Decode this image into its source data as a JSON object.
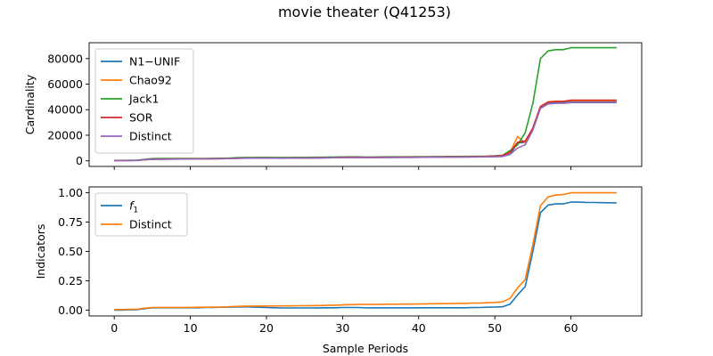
{
  "suptitle": "movie theater (Q41253)",
  "chart_data": [
    {
      "type": "line",
      "ylabel": "Cardinality",
      "xlabel": "",
      "xlim": [
        -3.3,
        69.3
      ],
      "ylim": [
        -4400,
        92400
      ],
      "xticks": [
        0,
        10,
        20,
        30,
        40,
        50,
        60
      ],
      "yticks": [
        0,
        20000,
        40000,
        60000,
        80000
      ],
      "show_xtick_labels": false,
      "legend": "upper-left",
      "x": [
        0,
        1,
        2,
        3,
        4,
        5,
        6,
        7,
        8,
        9,
        10,
        11,
        12,
        13,
        14,
        15,
        16,
        17,
        18,
        19,
        20,
        21,
        22,
        23,
        24,
        25,
        26,
        27,
        28,
        29,
        30,
        31,
        32,
        33,
        34,
        35,
        36,
        37,
        38,
        39,
        40,
        41,
        42,
        43,
        44,
        45,
        46,
        47,
        48,
        49,
        50,
        51,
        52,
        53,
        54,
        55,
        56,
        57,
        58,
        59,
        60,
        61,
        62,
        63,
        64,
        65,
        66
      ],
      "series": [
        {
          "name": "N1−UNIF",
          "color": "#1f77b4",
          "values": [
            200,
            250,
            300,
            350,
            900,
            1200,
            1300,
            1350,
            1400,
            1450,
            1500,
            1550,
            1600,
            1650,
            1700,
            1800,
            2000,
            2100,
            2150,
            2200,
            2200,
            2150,
            2100,
            2150,
            2200,
            2250,
            2300,
            2350,
            2400,
            2500,
            2600,
            2650,
            2700,
            2600,
            2600,
            2650,
            2700,
            2700,
            2750,
            2750,
            2800,
            2850,
            2900,
            2950,
            3000,
            3000,
            3050,
            3100,
            3150,
            3200,
            3300,
            3500,
            5000,
            14000,
            14500,
            25000,
            42000,
            45000,
            45500,
            45500,
            46000,
            46000,
            46000,
            46000,
            46000,
            46000,
            46000
          ]
        },
        {
          "name": "Chao92",
          "color": "#ff7f0e",
          "values": [
            200,
            250,
            300,
            350,
            900,
            1200,
            1300,
            1350,
            1400,
            1450,
            1500,
            1550,
            1600,
            1650,
            1700,
            1800,
            2000,
            2100,
            2150,
            2200,
            2200,
            2150,
            2100,
            2150,
            2200,
            2250,
            2300,
            2350,
            2400,
            2500,
            2600,
            2650,
            2700,
            2600,
            2600,
            2650,
            2700,
            2700,
            2750,
            2750,
            2800,
            2850,
            2900,
            2950,
            3000,
            3000,
            3050,
            3100,
            3200,
            3300,
            3500,
            3800,
            6500,
            19000,
            14000,
            26000,
            42500,
            46000,
            46500,
            46500,
            47000,
            47000,
            47000,
            47000,
            47000,
            47000,
            47000
          ]
        },
        {
          "name": "Jack1",
          "color": "#2ca02c",
          "values": [
            300,
            350,
            400,
            450,
            1200,
            1700,
            1800,
            1800,
            1850,
            1850,
            1850,
            1900,
            1900,
            1950,
            2000,
            2100,
            2400,
            2600,
            2650,
            2700,
            2700,
            2650,
            2600,
            2650,
            2700,
            2700,
            2750,
            2800,
            2850,
            2950,
            3050,
            3100,
            3100,
            3000,
            3000,
            3050,
            3100,
            3100,
            3150,
            3150,
            3200,
            3250,
            3300,
            3350,
            3400,
            3400,
            3450,
            3500,
            3600,
            3700,
            3900,
            4300,
            8000,
            12500,
            22000,
            45000,
            80000,
            86000,
            87000,
            87000,
            88500,
            88500,
            88500,
            88500,
            88500,
            88500,
            88500
          ]
        },
        {
          "name": "SOR",
          "color": "#d62728",
          "values": [
            200,
            250,
            300,
            350,
            900,
            1200,
            1300,
            1350,
            1400,
            1450,
            1500,
            1550,
            1600,
            1650,
            1700,
            1800,
            2000,
            2100,
            2150,
            2200,
            2200,
            2150,
            2100,
            2150,
            2200,
            2250,
            2300,
            2350,
            2400,
            2500,
            2700,
            2750,
            2800,
            2700,
            2700,
            2750,
            2800,
            2800,
            2850,
            2850,
            2900,
            2950,
            3000,
            3050,
            3100,
            3100,
            3150,
            3200,
            3300,
            3500,
            3700,
            4200,
            6500,
            14500,
            15500,
            25500,
            42500,
            46000,
            46500,
            46500,
            47500,
            47500,
            47500,
            47500,
            47500,
            47500,
            47500
          ]
        },
        {
          "name": "Distinct",
          "color": "#9467bd",
          "values": [
            150,
            200,
            250,
            300,
            800,
            1100,
            1200,
            1250,
            1300,
            1350,
            1400,
            1450,
            1500,
            1550,
            1600,
            1700,
            1900,
            2000,
            2050,
            2100,
            2100,
            2050,
            2000,
            2050,
            2100,
            2150,
            2200,
            2250,
            2300,
            2400,
            2500,
            2550,
            2600,
            2500,
            2500,
            2550,
            2600,
            2600,
            2650,
            2650,
            2700,
            2750,
            2800,
            2850,
            2900,
            2900,
            2950,
            3000,
            3050,
            3100,
            3200,
            3400,
            5000,
            10000,
            12500,
            24000,
            41000,
            44500,
            45000,
            45000,
            45500,
            45500,
            45500,
            45500,
            45500,
            45500,
            45500
          ]
        }
      ]
    },
    {
      "type": "line",
      "ylabel": "Indicators",
      "xlabel": "Sample Periods",
      "xlim": [
        -3.3,
        69.3
      ],
      "ylim": [
        -0.05,
        1.05
      ],
      "xticks": [
        0,
        10,
        20,
        30,
        40,
        50,
        60
      ],
      "yticks": [
        0.0,
        0.25,
        0.5,
        0.75,
        1.0
      ],
      "yticklabels": [
        "0.00",
        "0.25",
        "0.50",
        "0.75",
        "1.00"
      ],
      "show_xtick_labels": true,
      "legend": "upper-left",
      "x": [
        0,
        1,
        2,
        3,
        4,
        5,
        6,
        7,
        8,
        9,
        10,
        11,
        12,
        13,
        14,
        15,
        16,
        17,
        18,
        19,
        20,
        21,
        22,
        23,
        24,
        25,
        26,
        27,
        28,
        29,
        30,
        31,
        32,
        33,
        34,
        35,
        36,
        37,
        38,
        39,
        40,
        41,
        42,
        43,
        44,
        45,
        46,
        47,
        48,
        49,
        50,
        51,
        52,
        53,
        54,
        55,
        56,
        57,
        58,
        59,
        60,
        61,
        62,
        63,
        64,
        65,
        66
      ],
      "series": [
        {
          "name": "f1",
          "legend_main": "f",
          "legend_sub": "1",
          "color": "#1f77b4",
          "values": [
            0.0,
            0.0,
            0.002,
            0.004,
            0.012,
            0.02,
            0.02,
            0.02,
            0.02,
            0.02,
            0.02,
            0.02,
            0.022,
            0.022,
            0.024,
            0.025,
            0.027,
            0.028,
            0.026,
            0.024,
            0.022,
            0.02,
            0.018,
            0.018,
            0.018,
            0.018,
            0.018,
            0.019,
            0.02,
            0.02,
            0.022,
            0.022,
            0.022,
            0.02,
            0.019,
            0.019,
            0.019,
            0.019,
            0.019,
            0.019,
            0.02,
            0.02,
            0.02,
            0.02,
            0.02,
            0.02,
            0.02,
            0.021,
            0.022,
            0.024,
            0.026,
            0.028,
            0.05,
            0.13,
            0.2,
            0.5,
            0.83,
            0.895,
            0.905,
            0.905,
            0.92,
            0.92,
            0.918,
            0.917,
            0.916,
            0.915,
            0.914
          ]
        },
        {
          "name": "Distinct",
          "color": "#ff7f0e",
          "values": [
            0.005,
            0.005,
            0.006,
            0.008,
            0.016,
            0.022,
            0.023,
            0.023,
            0.023,
            0.023,
            0.023,
            0.024,
            0.024,
            0.025,
            0.026,
            0.028,
            0.031,
            0.033,
            0.034,
            0.034,
            0.035,
            0.035,
            0.036,
            0.036,
            0.037,
            0.037,
            0.038,
            0.039,
            0.04,
            0.042,
            0.044,
            0.046,
            0.048,
            0.048,
            0.048,
            0.049,
            0.05,
            0.05,
            0.051,
            0.051,
            0.052,
            0.053,
            0.054,
            0.055,
            0.056,
            0.057,
            0.058,
            0.059,
            0.06,
            0.062,
            0.065,
            0.07,
            0.1,
            0.19,
            0.26,
            0.56,
            0.89,
            0.965,
            0.98,
            0.985,
            1.0,
            1.0,
            1.0,
            1.0,
            1.0,
            1.0,
            1.0
          ]
        }
      ]
    }
  ]
}
